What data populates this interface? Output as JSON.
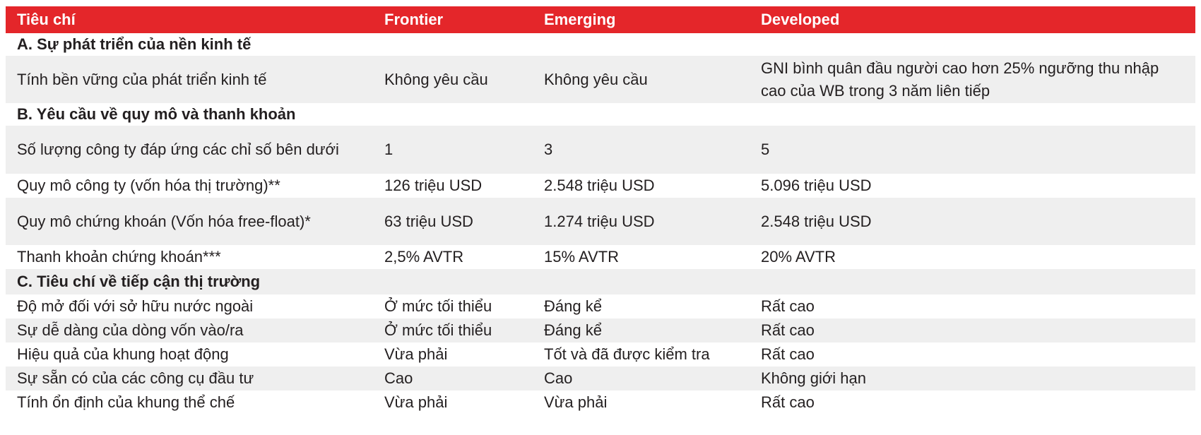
{
  "header": {
    "col1": "Tiêu chí",
    "col2": "Frontier",
    "col3": "Emerging",
    "col4": "Developed"
  },
  "sections": {
    "a": "A. Sự phát triển của nền kinh tế",
    "b": "B. Yêu cầu về quy mô và thanh khoản",
    "c": "C. Tiêu chí về tiếp cận thị trường"
  },
  "rows": [
    {
      "criterion": "Tính bền vững của phát triển kinh tế",
      "frontier": "Không yêu cầu",
      "emerging": "Không yêu cầu",
      "developed": "GNI bình quân đầu người cao hơn 25% ngưỡng thu nhập cao của WB trong 3 năm liên tiếp"
    },
    {
      "criterion": "Số lượng công ty đáp ứng các chỉ số bên dưới",
      "frontier": "1",
      "emerging": "3",
      "developed": "5"
    },
    {
      "criterion": "Quy mô công ty (vốn hóa thị trường)**",
      "frontier": "126 triệu USD",
      "emerging": "2.548 triệu USD",
      "developed": "5.096 triệu USD"
    },
    {
      "criterion": "Quy mô chứng khoán (Vốn hóa free-float)*",
      "frontier": "63 triệu USD",
      "emerging": "1.274 triệu USD",
      "developed": "2.548 triệu USD"
    },
    {
      "criterion": "Thanh khoản chứng khoán***",
      "frontier": "2,5% AVTR",
      "emerging": "15% AVTR",
      "developed": "20% AVTR"
    },
    {
      "criterion": "Độ mở đối với sở hữu nước ngoài",
      "frontier": "Ở mức tối thiểu",
      "emerging": "Đáng kể",
      "developed": "Rất cao"
    },
    {
      "criterion": "Sự dễ dàng của dòng vốn vào/ra",
      "frontier": "Ở mức tối thiểu",
      "emerging": "Đáng kể",
      "developed": "Rất cao"
    },
    {
      "criterion": "Hiệu quả của khung hoạt động",
      "frontier": "Vừa phải",
      "emerging": "Tốt và đã được kiểm tra",
      "developed": "Rất cao"
    },
    {
      "criterion": "Sự sẵn có của các công cụ đầu tư",
      "frontier": "Cao",
      "emerging": "Cao",
      "developed": "Không giới hạn"
    },
    {
      "criterion": "Tính ổn định của khung thể chế",
      "frontier": "Vừa phải",
      "emerging": "Vừa phải",
      "developed": "Rất cao"
    }
  ],
  "colors": {
    "header_bg": "#e4262a",
    "header_text": "#ffffff",
    "stripe": "#efefef"
  }
}
